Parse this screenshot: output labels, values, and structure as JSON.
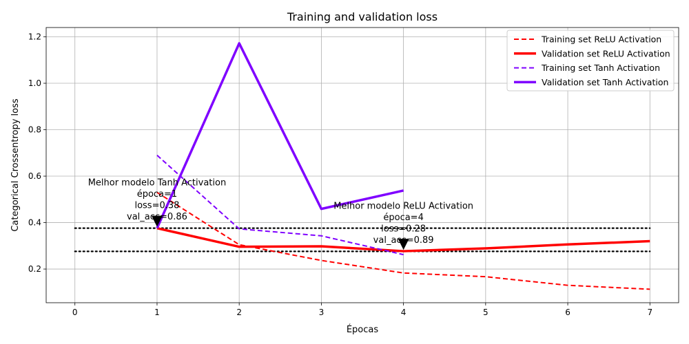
{
  "chart_data": {
    "type": "line",
    "title": "Training and validation loss",
    "xlabel": "Épocas",
    "ylabel": "Categorical Crossentropy loss",
    "xlim": [
      -0.35,
      7.35
    ],
    "ylim": [
      0.055,
      1.24
    ],
    "grid": true,
    "legend_position": "top-right",
    "xticks": [
      0,
      1,
      2,
      3,
      4,
      5,
      6,
      7
    ],
    "xtick_labels": [
      "0",
      "1",
      "2",
      "3",
      "4",
      "5",
      "6",
      "7"
    ],
    "yticks": [
      0.2,
      0.4,
      0.6,
      0.8,
      1.0,
      1.2
    ],
    "ytick_labels": [
      "0.2",
      "0.4",
      "0.6",
      "0.8",
      "1.0",
      "1.2"
    ],
    "series": [
      {
        "name": "Training set ReLU Activation",
        "color": "#ff0000",
        "dash": true,
        "width": 2,
        "x": [
          1,
          2,
          3,
          4,
          5,
          6,
          7
        ],
        "y": [
          0.53,
          0.305,
          0.237,
          0.183,
          0.167,
          0.13,
          0.113
        ]
      },
      {
        "name": "Validation set ReLU Activation",
        "color": "#ff0000",
        "dash": false,
        "width": 3.5,
        "x": [
          1,
          2,
          3,
          4,
          5,
          6,
          7
        ],
        "y": [
          0.376,
          0.296,
          0.298,
          0.277,
          0.289,
          0.306,
          0.32
        ]
      },
      {
        "name": "Training set Tanh Activation",
        "color": "#7f00ff",
        "dash": true,
        "width": 2,
        "x": [
          1,
          2,
          3,
          4
        ],
        "y": [
          0.69,
          0.373,
          0.343,
          0.262
        ]
      },
      {
        "name": "Validation set Tanh Activation",
        "color": "#7f00ff",
        "dash": false,
        "width": 3.5,
        "x": [
          1,
          2,
          3,
          4
        ],
        "y": [
          0.376,
          1.172,
          0.459,
          0.538
        ]
      }
    ],
    "hlines": [
      {
        "y": 0.376,
        "x_from": 0,
        "x_to": 7
      },
      {
        "y": 0.276,
        "x_from": 0,
        "x_to": 7
      }
    ],
    "annotations": [
      {
        "text_lines": [
          "Melhor modelo Tanh Activation",
          "época=1",
          "loss=0.38",
          "val_acc=0.86"
        ],
        "point": [
          1,
          0.376
        ],
        "text_at": [
          1,
          0.56
        ]
      },
      {
        "text_lines": [
          "Melhor modelo ReLU Activation",
          "época=4",
          "loss=0.28",
          "val_acc=0.89"
        ],
        "point": [
          4,
          0.277
        ],
        "text_at": [
          4,
          0.46
        ]
      }
    ]
  }
}
